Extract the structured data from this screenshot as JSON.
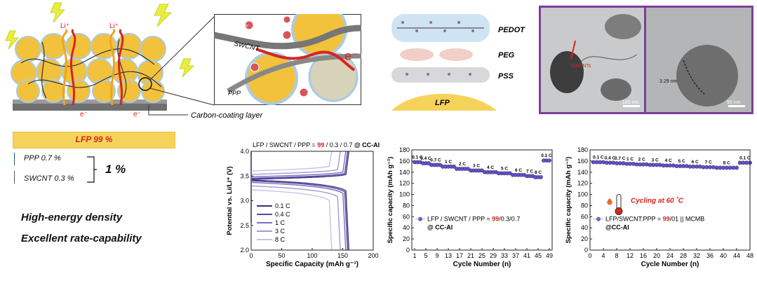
{
  "schematic": {
    "li_label": "Li⁺",
    "e_label": "e⁻",
    "carbon_coating": "Carbon-coating layer",
    "swcnt": "SWCNT",
    "ppp": "PPP",
    "b_label": "B⁻",
    "e_big": "e⁻",
    "pedot": "PEDOT",
    "peg": "PEG",
    "pss": "PSS",
    "lfp_layer": "LFP",
    "tem_swcnts": "SWCNTs",
    "tem_scale1": "100 nm",
    "tem_thickness": "3.29 nm",
    "tem_scale2": "50 nm"
  },
  "composition": {
    "lfp": "LFP 99 %",
    "ppp": "PPP 0.7 %",
    "swcnt": "SWCNT 0.3 %",
    "total": "1 %",
    "highlight1": "High-energy density",
    "highlight2": "Excellent rate-capability"
  },
  "colors": {
    "gold": "#f5d35b",
    "red": "#d8231f",
    "purple": "#6a4fc4",
    "tem_border": "#7b3f98"
  },
  "chart_data": [
    {
      "type": "line",
      "title_parts": [
        "LFP / SWCNT / PPP = ",
        "99",
        " / 0.3 / 0.7 ",
        "@ CC-Al"
      ],
      "xlabel": "Specific Capacity (mAh g⁻¹)",
      "ylabel": "Potential vs. Li/Li⁺ (V)",
      "xlim": [
        0,
        200
      ],
      "ylim": [
        2.0,
        4.0
      ],
      "xticks": [
        "0",
        "50",
        "100",
        "150",
        "200"
      ],
      "yticks": [
        "2.0",
        "2.5",
        "3.0",
        "3.5",
        "4.0"
      ],
      "series": [
        {
          "name": "0.1 C",
          "capacity": 160,
          "charge_v": 3.45,
          "discharge_v": 3.4,
          "color": "#3a2f7d"
        },
        {
          "name": "0.4 C",
          "capacity": 158,
          "charge_v": 3.47,
          "discharge_v": 3.38,
          "color": "#5548a0"
        },
        {
          "name": "1 C",
          "capacity": 155,
          "charge_v": 3.5,
          "discharge_v": 3.35,
          "color": "#7a6fc0"
        },
        {
          "name": "3 C",
          "capacity": 146,
          "charge_v": 3.55,
          "discharge_v": 3.28,
          "color": "#a29ad6"
        },
        {
          "name": "8 C",
          "capacity": 132,
          "charge_v": 3.62,
          "discharge_v": 3.2,
          "color": "#c8c2ea"
        }
      ]
    },
    {
      "type": "scatter",
      "xlabel": "Cycle Number (n)",
      "ylabel": "Specific capacity (mAh g⁻¹)",
      "xlim": [
        0,
        50
      ],
      "ylim": [
        0,
        180
      ],
      "xticks": [
        "1",
        "5",
        "9",
        "13",
        "17",
        "21",
        "25",
        "29",
        "33",
        "37",
        "41",
        "45",
        "49"
      ],
      "yticks": [
        "0",
        "20",
        "40",
        "60",
        "80",
        "100",
        "120",
        "140",
        "160",
        "180"
      ],
      "legend_parts": [
        "LFP / SWCNT / PPP = ",
        "99",
        "/0.3/0.7"
      ],
      "legend_line2": "@ CC-Al",
      "segments": [
        {
          "label": "0.1 C",
          "start": 1,
          "end": 3,
          "value": 158
        },
        {
          "label": "0.4 C",
          "start": 4,
          "end": 6,
          "value": 156
        },
        {
          "label": "0.7 C",
          "start": 7,
          "end": 10,
          "value": 153
        },
        {
          "label": "1 C",
          "start": 11,
          "end": 15,
          "value": 150
        },
        {
          "label": "2 C",
          "start": 16,
          "end": 20,
          "value": 146
        },
        {
          "label": "3 C",
          "start": 21,
          "end": 25,
          "value": 143
        },
        {
          "label": "4 C",
          "start": 26,
          "end": 30,
          "value": 140
        },
        {
          "label": "5 C",
          "start": 31,
          "end": 35,
          "value": 138
        },
        {
          "label": "6 C",
          "start": 36,
          "end": 40,
          "value": 135
        },
        {
          "label": "7 C",
          "start": 41,
          "end": 43,
          "value": 133
        },
        {
          "label": "8 C",
          "start": 44,
          "end": 46,
          "value": 131
        },
        {
          "label": "0.1 C",
          "start": 47,
          "end": 49,
          "value": 161
        }
      ]
    },
    {
      "type": "scatter",
      "xlabel": "Cycle Number (n)",
      "ylabel": "Specific capacity (mAh g⁻¹)",
      "xlim": [
        0,
        48
      ],
      "ylim": [
        0,
        180
      ],
      "xticks": [
        "0",
        "4",
        "8",
        "12",
        "16",
        "20",
        "24",
        "28",
        "32",
        "36",
        "40",
        "44",
        "48"
      ],
      "yticks": [
        "0",
        "20",
        "40",
        "60",
        "80",
        "100",
        "120",
        "140",
        "160",
        "180"
      ],
      "annotation": "Cycling at 60 ˚C",
      "legend_parts": [
        "LFP/SWCNT:PPP = ",
        "99",
        "/01 || MCMB"
      ],
      "legend_line2": "@CC-Al",
      "segments": [
        {
          "label": "0.1 C",
          "start": 1,
          "end": 4,
          "value": 158
        },
        {
          "label": "0.4 C",
          "start": 5,
          "end": 7,
          "value": 157
        },
        {
          "label": "0.7 C",
          "start": 8,
          "end": 10,
          "value": 156
        },
        {
          "label": "1 C",
          "start": 11,
          "end": 13,
          "value": 155
        },
        {
          "label": "2 C",
          "start": 14,
          "end": 17,
          "value": 154
        },
        {
          "label": "3 C",
          "start": 18,
          "end": 21,
          "value": 153
        },
        {
          "label": "4 C",
          "start": 22,
          "end": 25,
          "value": 152
        },
        {
          "label": "5 C",
          "start": 26,
          "end": 29,
          "value": 151
        },
        {
          "label": "6 C",
          "start": 30,
          "end": 33,
          "value": 150
        },
        {
          "label": "7 C",
          "start": 34,
          "end": 37,
          "value": 149
        },
        {
          "label": "8 C",
          "start": 38,
          "end": 44,
          "value": 148
        },
        {
          "label": "0.1 C",
          "start": 45,
          "end": 48,
          "value": 157
        }
      ]
    }
  ]
}
